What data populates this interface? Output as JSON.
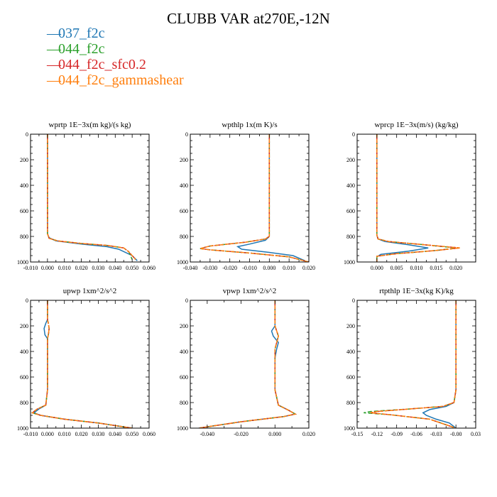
{
  "title": "CLUBB VAR at270E,-12N",
  "legend": [
    {
      "label": "037_f2c",
      "color": "#1f77b4"
    },
    {
      "label": "044_f2c",
      "color": "#2ca02c"
    },
    {
      "label": "044_f2c_sfc0.2",
      "color": "#d62728"
    },
    {
      "label": "044_f2c_gammashear",
      "color": "#ff7f0e"
    }
  ],
  "chart_data": [
    {
      "type": "line",
      "title": "wprtp  1E−3x(m kg)/(s kg)",
      "xlim": [
        -0.01,
        0.06
      ],
      "xticks": [
        -0.01,
        0.0,
        0.01,
        0.02,
        0.03,
        0.04,
        0.05,
        0.06
      ],
      "xticklabels": [
        "-0.010",
        "0.000",
        "0.010",
        "0.020",
        "0.030",
        "0.040",
        "0.050",
        "0.060"
      ],
      "ylim": [
        1000,
        0
      ],
      "yticks": [
        0,
        200,
        400,
        600,
        800,
        1000
      ],
      "series": [
        {
          "name": "037_f2c",
          "x": [
            0,
            0,
            0,
            0,
            0,
            0.001,
            0.005,
            0.02,
            0.035,
            0.042,
            0.05,
            0.053
          ],
          "y": [
            0,
            200,
            400,
            600,
            780,
            810,
            835,
            860,
            880,
            900,
            950,
            990
          ]
        },
        {
          "name": "044_f2c",
          "x": [
            0,
            0,
            0,
            0,
            0,
            0.001,
            0.006,
            0.02,
            0.035,
            0.045,
            0.048,
            0.049,
            0.05
          ],
          "y": [
            0,
            200,
            400,
            600,
            780,
            815,
            835,
            855,
            870,
            890,
            920,
            950,
            980
          ]
        },
        {
          "name": "044_f2c_sfc0.2",
          "x": [
            0,
            0,
            0,
            0,
            0,
            0.001,
            0.006,
            0.02,
            0.035,
            0.045,
            0.048,
            0.05,
            0.052
          ],
          "y": [
            0,
            200,
            400,
            600,
            780,
            815,
            835,
            855,
            870,
            890,
            920,
            950,
            980
          ]
        },
        {
          "name": "044_f2c_gammashear",
          "x": [
            0,
            0,
            0,
            0,
            0,
            0.001,
            0.006,
            0.02,
            0.035,
            0.045,
            0.048,
            0.05,
            0.052
          ],
          "y": [
            0,
            200,
            400,
            600,
            780,
            815,
            835,
            855,
            870,
            890,
            920,
            950,
            980
          ]
        }
      ]
    },
    {
      "type": "line",
      "title": "wpthlp  1x(m K)/s",
      "xlim": [
        -0.04,
        0.02
      ],
      "xticks": [
        -0.04,
        -0.03,
        -0.02,
        -0.01,
        0.0,
        0.01,
        0.02
      ],
      "xticklabels": [
        "-0.040",
        "-0.030",
        "-0.020",
        "-0.010",
        "0.000",
        "0.010",
        "0.020"
      ],
      "ylim": [
        1000,
        0
      ],
      "yticks": [
        0,
        200,
        400,
        600,
        800,
        1000
      ],
      "series": [
        {
          "name": "037_f2c",
          "x": [
            0,
            0,
            0,
            0,
            0,
            0,
            -0.002,
            -0.01,
            -0.016,
            -0.014,
            0.0,
            0.012,
            0.018
          ],
          "y": [
            0,
            200,
            220,
            400,
            600,
            800,
            830,
            860,
            880,
            900,
            925,
            950,
            990
          ]
        },
        {
          "name": "044_f2c",
          "x": [
            0,
            0,
            0,
            0,
            0,
            -0.002,
            -0.012,
            -0.03,
            -0.035,
            -0.03,
            -0.01,
            0.01,
            0.02
          ],
          "y": [
            0,
            200,
            400,
            600,
            800,
            820,
            845,
            875,
            895,
            905,
            930,
            960,
            1000
          ]
        },
        {
          "name": "044_f2c_sfc0.2",
          "x": [
            0,
            0,
            0,
            0,
            0,
            -0.002,
            -0.012,
            -0.03,
            -0.035,
            -0.03,
            -0.01,
            0.01,
            0.02
          ],
          "y": [
            0,
            200,
            400,
            600,
            800,
            820,
            845,
            875,
            895,
            905,
            930,
            960,
            1000
          ]
        },
        {
          "name": "044_f2c_gammashear",
          "x": [
            0,
            0,
            0,
            0,
            0,
            -0.002,
            -0.012,
            -0.03,
            -0.035,
            -0.03,
            -0.01,
            0.01,
            0.02
          ],
          "y": [
            0,
            200,
            400,
            600,
            800,
            820,
            845,
            875,
            895,
            905,
            930,
            960,
            1000
          ]
        }
      ]
    },
    {
      "type": "line",
      "title": "wprcp  1E−3x(m/s) (kg/kg)",
      "xlim": [
        -0.005,
        0.025
      ],
      "xticks": [
        0.0,
        0.005,
        0.01,
        0.015,
        0.02
      ],
      "xticklabels": [
        "0.000",
        "0.005",
        "0.010",
        "0.015",
        "0.020"
      ],
      "ylim": [
        1000,
        0
      ],
      "yticks": [
        0,
        200,
        400,
        600,
        800,
        1000
      ],
      "series": [
        {
          "name": "037_f2c",
          "x": [
            0,
            0,
            0,
            0,
            0,
            0.0003,
            0.002,
            0.008,
            0.013,
            0.008,
            0.001,
            0,
            0
          ],
          "y": [
            0,
            200,
            400,
            600,
            790,
            820,
            840,
            865,
            890,
            915,
            940,
            960,
            1000
          ]
        },
        {
          "name": "044_f2c",
          "x": [
            0,
            0,
            0,
            0,
            0,
            0.0003,
            0.003,
            0.012,
            0.02,
            0.015,
            0.005,
            0,
            0
          ],
          "y": [
            0,
            200,
            400,
            600,
            790,
            820,
            840,
            865,
            890,
            910,
            935,
            955,
            1000
          ]
        },
        {
          "name": "044_f2c_sfc0.2",
          "x": [
            0,
            0,
            0,
            0,
            0,
            0.0003,
            0.003,
            0.012,
            0.021,
            0.015,
            0.005,
            0,
            0
          ],
          "y": [
            0,
            200,
            400,
            600,
            790,
            820,
            840,
            865,
            890,
            910,
            935,
            955,
            1000
          ]
        },
        {
          "name": "044_f2c_gammashear",
          "x": [
            0,
            0,
            0,
            0,
            0,
            0.0003,
            0.003,
            0.012,
            0.021,
            0.015,
            0.005,
            0,
            0
          ],
          "y": [
            0,
            200,
            400,
            600,
            790,
            820,
            840,
            865,
            890,
            910,
            935,
            955,
            1000
          ]
        }
      ]
    },
    {
      "type": "line",
      "title": "upwp  1xm^2/s^2",
      "xlim": [
        -0.01,
        0.06
      ],
      "xticks": [
        -0.01,
        0.0,
        0.01,
        0.02,
        0.03,
        0.04,
        0.05,
        0.06
      ],
      "xticklabels": [
        "-0.010",
        "0.000",
        "0.010",
        "0.020",
        "0.030",
        "0.040",
        "0.050",
        "0.060"
      ],
      "ylim": [
        1000,
        0
      ],
      "yticks": [
        0,
        200,
        400,
        600,
        800,
        1000
      ],
      "series": [
        {
          "name": "037_f2c",
          "x": [
            0,
            0,
            -0.001,
            -0.002,
            -0.0015,
            0,
            0,
            0,
            -0.001,
            -0.005,
            -0.008,
            -0.004,
            0.01,
            0.03,
            0.05
          ],
          "y": [
            0,
            150,
            180,
            220,
            270,
            300,
            500,
            700,
            820,
            850,
            880,
            900,
            930,
            960,
            1000
          ]
        },
        {
          "name": "044_f2c",
          "x": [
            0,
            0,
            0.0005,
            0.001,
            0.0005,
            0,
            0,
            0,
            -0.001,
            -0.006,
            -0.009,
            -0.004,
            0.01,
            0.03,
            0.05
          ],
          "y": [
            0,
            150,
            180,
            220,
            270,
            300,
            500,
            700,
            820,
            850,
            880,
            900,
            930,
            960,
            1000
          ]
        },
        {
          "name": "044_f2c_sfc0.2",
          "x": [
            0,
            0,
            0.0005,
            0.001,
            0.0005,
            0,
            0,
            0,
            -0.001,
            -0.006,
            -0.009,
            -0.004,
            0.01,
            0.03,
            0.05
          ],
          "y": [
            0,
            150,
            180,
            220,
            270,
            300,
            500,
            700,
            820,
            850,
            880,
            900,
            930,
            960,
            1000
          ]
        },
        {
          "name": "044_f2c_gammashear",
          "x": [
            0,
            0,
            0.0005,
            0.001,
            0.0005,
            0,
            0,
            0,
            -0.001,
            -0.006,
            -0.009,
            -0.004,
            0.01,
            0.03,
            0.05
          ],
          "y": [
            0,
            150,
            180,
            220,
            270,
            300,
            500,
            700,
            820,
            850,
            880,
            900,
            930,
            960,
            1000
          ]
        }
      ]
    },
    {
      "type": "line",
      "title": "vpwp  1xm^2/s^2",
      "xlim": [
        -0.05,
        0.02
      ],
      "xticks": [
        -0.04,
        -0.02,
        0.0,
        0.02
      ],
      "xticklabels": [
        "-0.040",
        "-0.020",
        "0.000",
        "0.020"
      ],
      "ylim": [
        1000,
        0
      ],
      "yticks": [
        0,
        200,
        400,
        600,
        800,
        1000
      ],
      "series": [
        {
          "name": "037_f2c",
          "x": [
            0,
            0,
            -0.002,
            -0.001,
            0.002,
            0.001,
            0,
            0,
            0.002,
            0.008,
            0.012,
            0.005,
            -0.02,
            -0.045
          ],
          "y": [
            0,
            200,
            240,
            280,
            330,
            380,
            450,
            700,
            820,
            860,
            890,
            910,
            950,
            1000
          ]
        },
        {
          "name": "044_f2c",
          "x": [
            0,
            0,
            0.001,
            0.002,
            0.001,
            0,
            0,
            0,
            0.002,
            0.008,
            0.012,
            0.005,
            -0.02,
            -0.045
          ],
          "y": [
            0,
            200,
            240,
            280,
            330,
            380,
            450,
            700,
            820,
            860,
            890,
            910,
            950,
            1000
          ]
        },
        {
          "name": "044_f2c_sfc0.2",
          "x": [
            0,
            0,
            0.001,
            0.002,
            0.001,
            0,
            0,
            0,
            0.002,
            0.008,
            0.012,
            0.005,
            -0.02,
            -0.045
          ],
          "y": [
            0,
            200,
            240,
            280,
            330,
            380,
            450,
            700,
            820,
            860,
            890,
            910,
            950,
            1000
          ]
        },
        {
          "name": "044_f2c_gammashear",
          "x": [
            0,
            0,
            0.001,
            0.002,
            0.001,
            0,
            0,
            0,
            0.002,
            0.008,
            0.012,
            0.005,
            -0.02,
            -0.045
          ],
          "y": [
            0,
            200,
            240,
            280,
            330,
            380,
            450,
            700,
            820,
            860,
            890,
            910,
            950,
            1000
          ]
        }
      ]
    },
    {
      "type": "line",
      "title": "rtpthlp  1E−3x(kg K)/kg",
      "xlim": [
        -0.15,
        0.03
      ],
      "xticks": [
        -0.15,
        -0.12,
        -0.09,
        -0.06,
        -0.03,
        0.0,
        0.03
      ],
      "xticklabels": [
        "-0.15",
        "-0.12",
        "-0.09",
        "-0.06",
        "-0.03",
        "-0.00",
        "0.03"
      ],
      "ylim": [
        1000,
        0
      ],
      "yticks": [
        0,
        200,
        400,
        600,
        800,
        1000
      ],
      "series": [
        {
          "name": "037_f2c",
          "x": [
            0,
            0,
            0,
            0,
            -0.003,
            -0.015,
            -0.04,
            -0.05,
            -0.045,
            -0.03,
            -0.01,
            0
          ],
          "y": [
            0,
            200,
            400,
            700,
            800,
            830,
            855,
            880,
            900,
            930,
            960,
            1000
          ]
        },
        {
          "name": "044_f2c",
          "x": [
            0,
            0,
            0,
            0,
            -0.003,
            -0.02,
            -0.07,
            -0.13,
            -0.14,
            -0.1,
            -0.04,
            0
          ],
          "y": [
            0,
            200,
            400,
            700,
            800,
            830,
            850,
            870,
            880,
            895,
            930,
            1000
          ]
        },
        {
          "name": "044_f2c_sfc0.2",
          "x": [
            0,
            0,
            0,
            0,
            -0.003,
            -0.02,
            -0.07,
            -0.12,
            -0.13,
            -0.1,
            -0.04,
            0
          ],
          "y": [
            0,
            200,
            400,
            700,
            800,
            830,
            850,
            870,
            880,
            895,
            930,
            1000
          ]
        },
        {
          "name": "044_f2c_gammashear",
          "x": [
            0,
            0,
            0,
            0,
            -0.003,
            -0.02,
            -0.07,
            -0.12,
            -0.13,
            -0.1,
            -0.04,
            0
          ],
          "y": [
            0,
            200,
            400,
            700,
            800,
            830,
            850,
            870,
            880,
            895,
            930,
            1000
          ]
        }
      ]
    }
  ]
}
